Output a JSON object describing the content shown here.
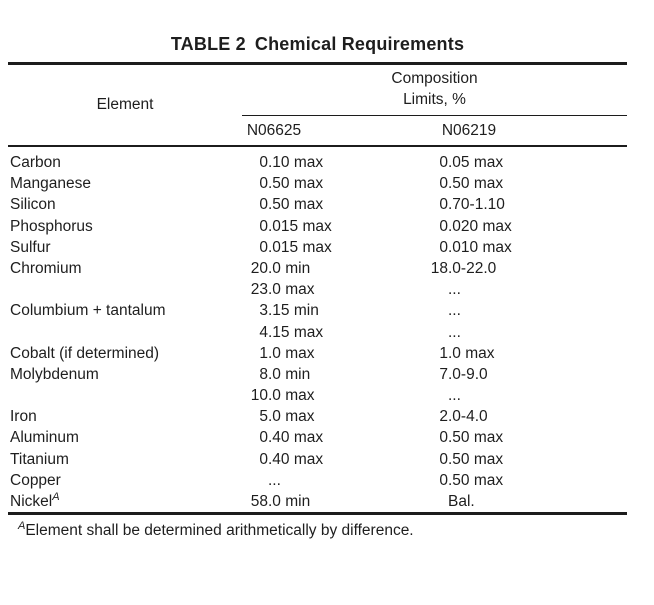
{
  "title": {
    "table_label": "TABLE 2",
    "table_title": "Chemical Requirements"
  },
  "header": {
    "element": "Element",
    "composition_line1": "Composition",
    "composition_line2": "Limits, %",
    "columns": [
      "N06625",
      "N06219"
    ]
  },
  "rows": [
    {
      "element": "Carbon",
      "sup": "",
      "n06625": "0.10 max",
      "n06219": "0.05 max"
    },
    {
      "element": "Manganese",
      "sup": "",
      "n06625": "0.50 max",
      "n06219": "0.50 max"
    },
    {
      "element": "Silicon",
      "sup": "",
      "n06625": "0.50 max",
      "n06219": "0.70-1.10"
    },
    {
      "element": "Phosphorus",
      "sup": "",
      "n06625": "0.015 max",
      "n06219": "0.020 max"
    },
    {
      "element": "Sulfur",
      "sup": "",
      "n06625": "0.015 max",
      "n06219": "0.010 max"
    },
    {
      "element": "Chromium",
      "sup": "",
      "n06625": "20.0 min",
      "n06219": "18.0-22.0"
    },
    {
      "element": "",
      "sup": "",
      "n06625": "23.0 max",
      "n06219": "..."
    },
    {
      "element": "Columbium + tantalum",
      "sup": "",
      "n06625": "3.15 min",
      "n06219": "..."
    },
    {
      "element": "",
      "sup": "",
      "n06625": "4.15 max",
      "n06219": "..."
    },
    {
      "element": "Cobalt (if determined)",
      "sup": "",
      "n06625": "1.0 max",
      "n06219": "1.0 max"
    },
    {
      "element": "Molybdenum",
      "sup": "",
      "n06625": "8.0 min",
      "n06219": "7.0-9.0"
    },
    {
      "element": "",
      "sup": "",
      "n06625": "10.0 max",
      "n06219": "..."
    },
    {
      "element": "Iron",
      "sup": "",
      "n06625": "5.0 max",
      "n06219": "2.0-4.0"
    },
    {
      "element": "Aluminum",
      "sup": "",
      "n06625": "0.40 max",
      "n06219": "0.50 max"
    },
    {
      "element": "Titanium",
      "sup": "",
      "n06625": "0.40 max",
      "n06219": "0.50 max"
    },
    {
      "element": "Copper",
      "sup": "",
      "n06625": "...",
      "n06219": "0.50 max"
    },
    {
      "element": "Nickel",
      "sup": "A",
      "n06625": "58.0 min",
      "n06219": "Bal."
    }
  ],
  "footnote": {
    "sup": "A",
    "text": "Element shall be determined arithmetically by difference."
  },
  "colors": {
    "text": "#1e1e1e",
    "background": "#ffffff",
    "rule": "#1c1c1c"
  }
}
